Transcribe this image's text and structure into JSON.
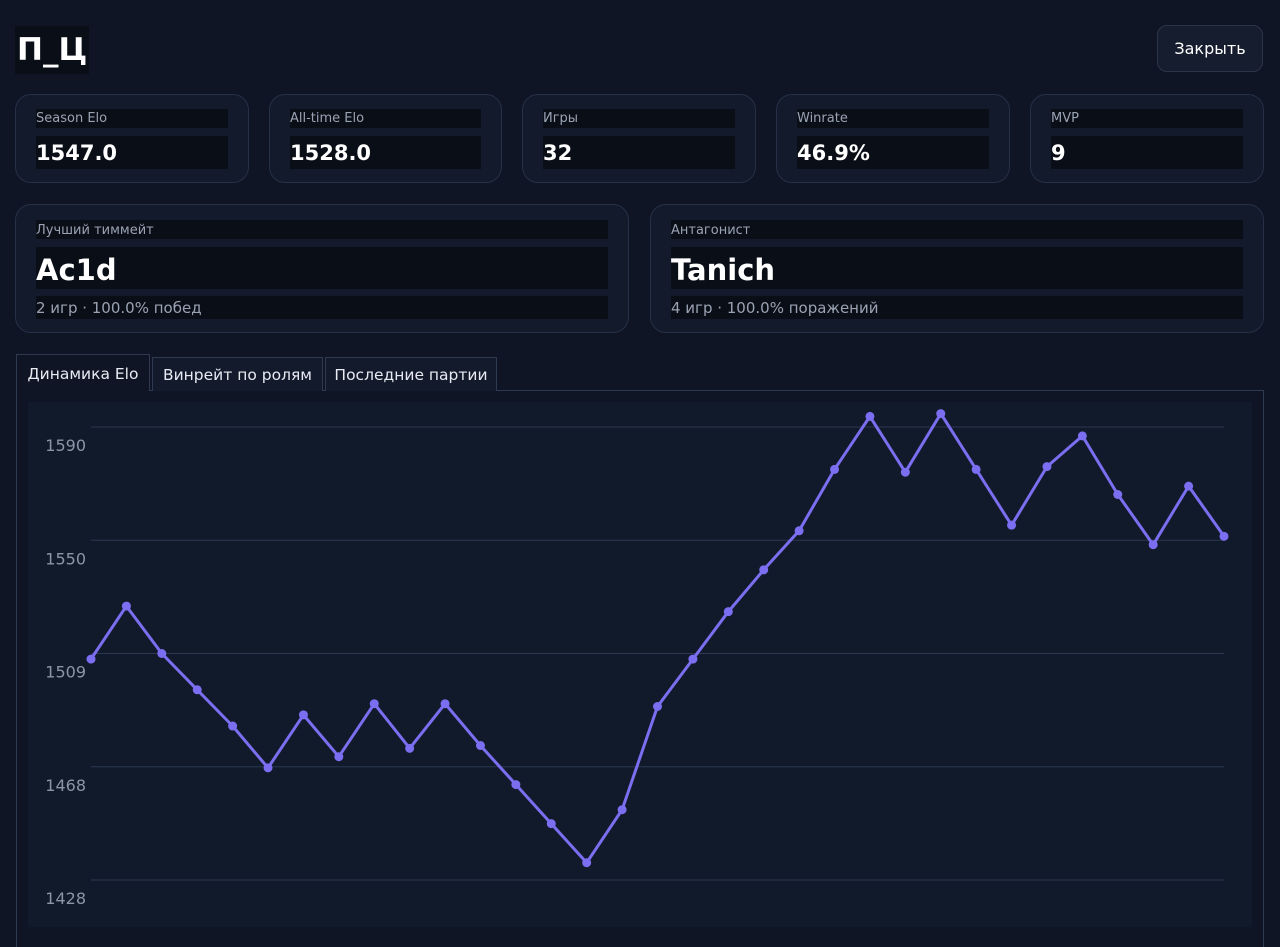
{
  "header": {
    "title": "П_Ц",
    "close_label": "Закрыть"
  },
  "stats": [
    {
      "label": "Season Elo",
      "value": "1547.0"
    },
    {
      "label": "All-time Elo",
      "value": "1528.0"
    },
    {
      "label": "Игры",
      "value": "32"
    },
    {
      "label": "Winrate",
      "value": "46.9%"
    },
    {
      "label": "MVP",
      "value": "9"
    }
  ],
  "best_teammate": {
    "label": "Лучший тиммейт",
    "name": "Ac1d",
    "sub": "2 игр · 100.0% побед"
  },
  "antagonist": {
    "label": "Антагонист",
    "name": "Tanich",
    "sub": "4 игр · 100.0% поражений"
  },
  "tabs": [
    {
      "label": "Динамика Elo",
      "active": true
    },
    {
      "label": "Винрейт по ролям",
      "active": false
    },
    {
      "label": "Последние партии",
      "active": false
    }
  ],
  "colors": {
    "line": "#7b6ef0",
    "grid": "#2a3852",
    "tick": "#8c95a6"
  },
  "chart_data": {
    "type": "line",
    "title": "",
    "xlabel": "",
    "ylabel": "",
    "ytick_labels": [
      "1590",
      "1550",
      "1509",
      "1468",
      "1428"
    ],
    "ytick_values": [
      1590.2,
      1549.6,
      1509.0,
      1468.4,
      1427.8
    ],
    "ylim": [
      1427.8,
      1590.2
    ],
    "grid": true,
    "legend": "none",
    "x": [
      1,
      2,
      3,
      4,
      5,
      6,
      7,
      8,
      9,
      10,
      11,
      12,
      13,
      14,
      15,
      16,
      17,
      18,
      19,
      20,
      21,
      22,
      23,
      24,
      25,
      26,
      27,
      28,
      29,
      30,
      31,
      32,
      33
    ],
    "series": [
      {
        "name": "",
        "values": [
          1507,
          1526,
          1509,
          1496,
          1483,
          1468,
          1487,
          1472,
          1491,
          1475,
          1491,
          1476,
          1462,
          1448,
          1434,
          1453,
          1490,
          1507,
          1524,
          1539,
          1553,
          1575,
          1594,
          1574,
          1595,
          1575,
          1555,
          1576,
          1587,
          1566,
          1548,
          1569,
          1551
        ]
      }
    ]
  }
}
